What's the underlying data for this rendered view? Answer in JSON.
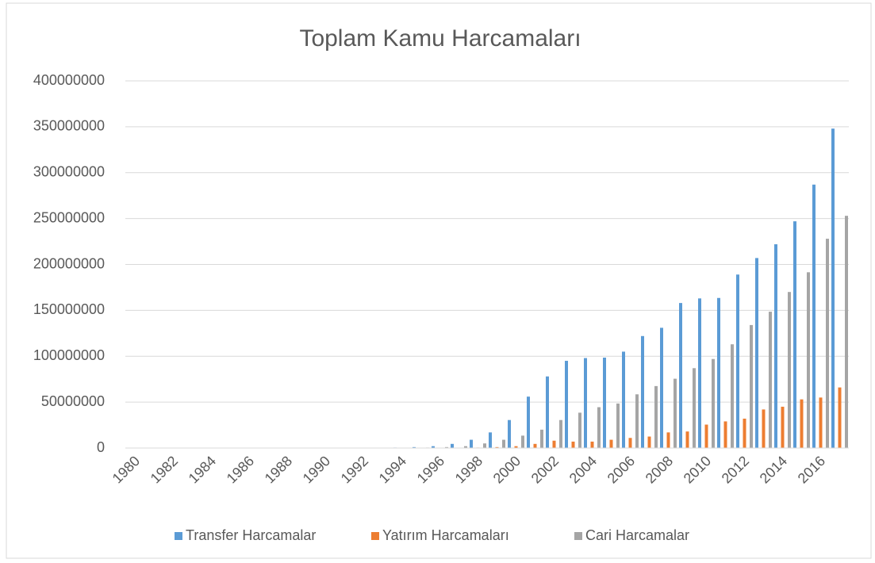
{
  "chart_data": {
    "type": "bar",
    "title": "Toplam Kamu Harcamaları",
    "categories": [
      "1980",
      null,
      "1982",
      null,
      "1984",
      null,
      "1986",
      null,
      "1988",
      null,
      "1990",
      null,
      "1992",
      null,
      "1994",
      null,
      "1996",
      null,
      "1998",
      null,
      "2000",
      null,
      "2002",
      null,
      "2004",
      null,
      "2006",
      null,
      "2008",
      null,
      "2010",
      null,
      "2012",
      null,
      "2014",
      null,
      "2016",
      null
    ],
    "series": [
      {
        "name": "Transfer Harcamalar",
        "color": "#5b9bd5",
        "values": [
          0,
          0,
          0,
          0,
          0,
          0,
          0,
          0,
          0,
          0,
          100000,
          150000,
          250000,
          400000,
          500000,
          1000000,
          2000000,
          4500000,
          9000000,
          17000000,
          30500000,
          56000000,
          78000000,
          95000000,
          98000000,
          98500000,
          105000000,
          122000000,
          131000000,
          158000000,
          163000000,
          163500000,
          189000000,
          207000000,
          222000000,
          247000000,
          287000000,
          348000000
        ]
      },
      {
        "name": "Yatırım Harcamaları",
        "color": "#ed7d31",
        "values": [
          0,
          0,
          0,
          0,
          0,
          0,
          0,
          0,
          0,
          0,
          0,
          0,
          0,
          50000,
          100000,
          150000,
          200000,
          300000,
          500000,
          1000000,
          2000000,
          4500000,
          8000000,
          7000000,
          7000000,
          9000000,
          11000000,
          12500000,
          17000000,
          18000000,
          25500000,
          29000000,
          32000000,
          42000000,
          45000000,
          53000000,
          55000000,
          66000000
        ]
      },
      {
        "name": "Cari Harcamalar",
        "color": "#a5a5a5",
        "values": [
          0,
          0,
          0,
          0,
          0,
          0,
          0,
          0,
          0,
          0,
          50000,
          100000,
          150000,
          250000,
          300000,
          500000,
          1000000,
          2000000,
          5000000,
          9000000,
          13500000,
          20000000,
          30500000,
          38500000,
          44500000,
          48500000,
          58500000,
          67500000,
          75500000,
          87000000,
          97000000,
          113000000,
          134000000,
          148500000,
          170000000,
          191500000,
          228000000,
          253000000
        ]
      }
    ],
    "ylim": [
      0,
      400000000
    ],
    "yticks": [
      0,
      50000000,
      100000000,
      150000000,
      200000000,
      250000000,
      300000000,
      350000000,
      400000000
    ],
    "grid": true,
    "legend": "bottom"
  }
}
